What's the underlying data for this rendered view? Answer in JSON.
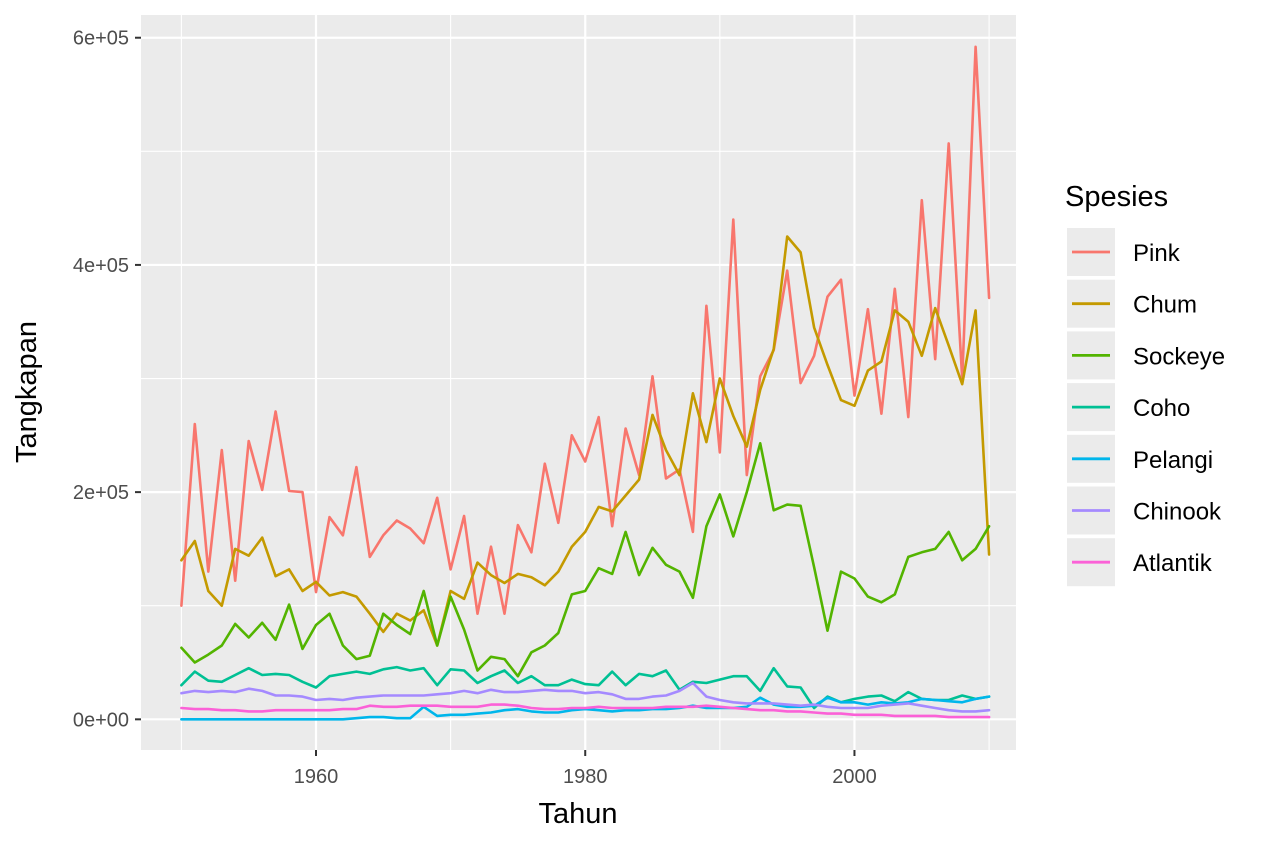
{
  "chart_data": {
    "type": "line",
    "xlabel": "Tahun",
    "ylabel": "Tangkapan",
    "xlim": [
      1947,
      2012
    ],
    "ylim": [
      -27000,
      620000
    ],
    "x_ticks": [
      1960,
      1980,
      2000
    ],
    "x_tick_labels": [
      "1960",
      "1980",
      "2000"
    ],
    "y_ticks": [
      0,
      200000,
      400000,
      600000
    ],
    "y_tick_labels": [
      "0e+00",
      "2e+05",
      "4e+05",
      "6e+05"
    ],
    "grid": true,
    "legend": {
      "title": "Spesies",
      "position": "right"
    },
    "x": [
      1950,
      1951,
      1952,
      1953,
      1954,
      1955,
      1956,
      1957,
      1958,
      1959,
      1960,
      1961,
      1962,
      1963,
      1964,
      1965,
      1966,
      1967,
      1968,
      1969,
      1970,
      1971,
      1972,
      1973,
      1974,
      1975,
      1976,
      1977,
      1978,
      1979,
      1980,
      1981,
      1982,
      1983,
      1984,
      1985,
      1986,
      1987,
      1988,
      1989,
      1990,
      1991,
      1992,
      1993,
      1994,
      1995,
      1996,
      1997,
      1998,
      1999,
      2000,
      2001,
      2002,
      2003,
      2004,
      2005,
      2006,
      2007,
      2008,
      2009,
      2010
    ],
    "series": [
      {
        "name": "Pink",
        "color": "#F8766D",
        "values": [
          100000,
          260000,
          130000,
          237000,
          122000,
          245000,
          202000,
          271000,
          201000,
          200000,
          112000,
          178000,
          162000,
          222000,
          143000,
          162000,
          175000,
          168000,
          155000,
          195000,
          132000,
          179000,
          93000,
          152000,
          93000,
          171000,
          147000,
          225000,
          173000,
          250000,
          227000,
          266000,
          170000,
          256000,
          215000,
          302000,
          212000,
          220000,
          165000,
          364000,
          235000,
          440000,
          215000,
          302000,
          325000,
          395000,
          296000,
          320000,
          372000,
          387000,
          285000,
          361000,
          269000,
          379000,
          266000,
          457000,
          317000,
          507000,
          300000,
          592000,
          371000
        ]
      },
      {
        "name": "Chum",
        "color": "#C49A00",
        "values": [
          140000,
          157000,
          113000,
          100000,
          150000,
          144000,
          160000,
          126000,
          132000,
          113000,
          121000,
          109000,
          112000,
          108000,
          93000,
          77000,
          93000,
          87000,
          96000,
          65000,
          113000,
          106000,
          138000,
          127000,
          120000,
          128000,
          125000,
          118000,
          130000,
          152000,
          165000,
          187000,
          183000,
          197000,
          211000,
          268000,
          237000,
          215000,
          287000,
          244000,
          300000,
          267000,
          240000,
          290000,
          326000,
          425000,
          411000,
          345000,
          312000,
          281000,
          276000,
          307000,
          315000,
          360000,
          350000,
          320000,
          362000,
          329000,
          295000,
          360000,
          145000
        ]
      },
      {
        "name": "Sockeye",
        "color": "#53B400",
        "values": [
          63000,
          50000,
          57000,
          65000,
          84000,
          72000,
          85000,
          70000,
          101000,
          62000,
          83000,
          93000,
          65000,
          53000,
          56000,
          93000,
          83000,
          75000,
          113000,
          65000,
          108000,
          79000,
          43000,
          55000,
          53000,
          38000,
          59000,
          65000,
          76000,
          110000,
          113000,
          133000,
          128000,
          165000,
          127000,
          151000,
          136000,
          130000,
          107000,
          170000,
          198000,
          161000,
          200000,
          243000,
          184000,
          189000,
          188000,
          134000,
          78000,
          130000,
          124000,
          108000,
          103000,
          110000,
          143000,
          147000,
          150000,
          165000,
          140000,
          150000,
          170000
        ]
      },
      {
        "name": "Coho",
        "color": "#00C094",
        "values": [
          30000,
          42000,
          34000,
          33000,
          39000,
          45000,
          39000,
          40000,
          39000,
          33000,
          28000,
          38000,
          40000,
          42000,
          40000,
          44000,
          46000,
          43000,
          45000,
          30000,
          44000,
          43000,
          32000,
          38000,
          43000,
          32000,
          38000,
          30000,
          30000,
          35000,
          31000,
          30000,
          42000,
          30000,
          40000,
          38000,
          43000,
          26000,
          33000,
          32000,
          35000,
          38000,
          38000,
          25000,
          45000,
          29000,
          28000,
          10000,
          20000,
          15000,
          18000,
          20000,
          21000,
          16000,
          24000,
          18000,
          17000,
          17000,
          21000,
          18000,
          20000
        ]
      },
      {
        "name": "Pelangi",
        "color": "#00B6EB",
        "values": [
          0,
          0,
          0,
          0,
          0,
          0,
          0,
          0,
          0,
          0,
          0,
          0,
          0,
          1000,
          2000,
          2000,
          1000,
          1000,
          11000,
          3000,
          4000,
          4000,
          5000,
          6000,
          8000,
          9000,
          7000,
          6000,
          6000,
          8000,
          9000,
          8000,
          7000,
          8000,
          8000,
          9000,
          9000,
          10000,
          12000,
          10000,
          10000,
          10000,
          11000,
          19000,
          13000,
          11000,
          11000,
          12000,
          19000,
          15000,
          15000,
          13000,
          15000,
          14000,
          15000,
          18000,
          17000,
          16000,
          15000,
          18000,
          20000
        ]
      },
      {
        "name": "Chinook",
        "color": "#A58AFF",
        "values": [
          23000,
          25000,
          24000,
          25000,
          24000,
          27000,
          25000,
          21000,
          21000,
          20000,
          17000,
          18000,
          17000,
          19000,
          20000,
          21000,
          21000,
          21000,
          21000,
          22000,
          23000,
          25000,
          23000,
          26000,
          24000,
          24000,
          25000,
          26000,
          25000,
          25000,
          23000,
          24000,
          22000,
          18000,
          18000,
          20000,
          21000,
          25000,
          32000,
          20000,
          17000,
          15000,
          14000,
          14000,
          14000,
          13000,
          12000,
          13000,
          11000,
          10000,
          10000,
          10000,
          12000,
          13000,
          14000,
          12000,
          10000,
          8000,
          7000,
          7000,
          8000
        ]
      },
      {
        "name": "Atlantik",
        "color": "#FB61D7",
        "values": [
          10000,
          9000,
          9000,
          8000,
          8000,
          7000,
          7000,
          8000,
          8000,
          8000,
          8000,
          8000,
          9000,
          9000,
          12000,
          11000,
          11000,
          12000,
          12000,
          12000,
          11000,
          11000,
          11000,
          13000,
          13000,
          12000,
          10000,
          9000,
          9000,
          10000,
          10000,
          11000,
          10000,
          10000,
          10000,
          10000,
          11000,
          11000,
          11000,
          12000,
          11000,
          10000,
          9000,
          8000,
          8000,
          7000,
          7000,
          6000,
          5000,
          5000,
          4000,
          4000,
          4000,
          3000,
          3000,
          3000,
          3000,
          2000,
          2000,
          2000,
          2000
        ]
      }
    ]
  }
}
